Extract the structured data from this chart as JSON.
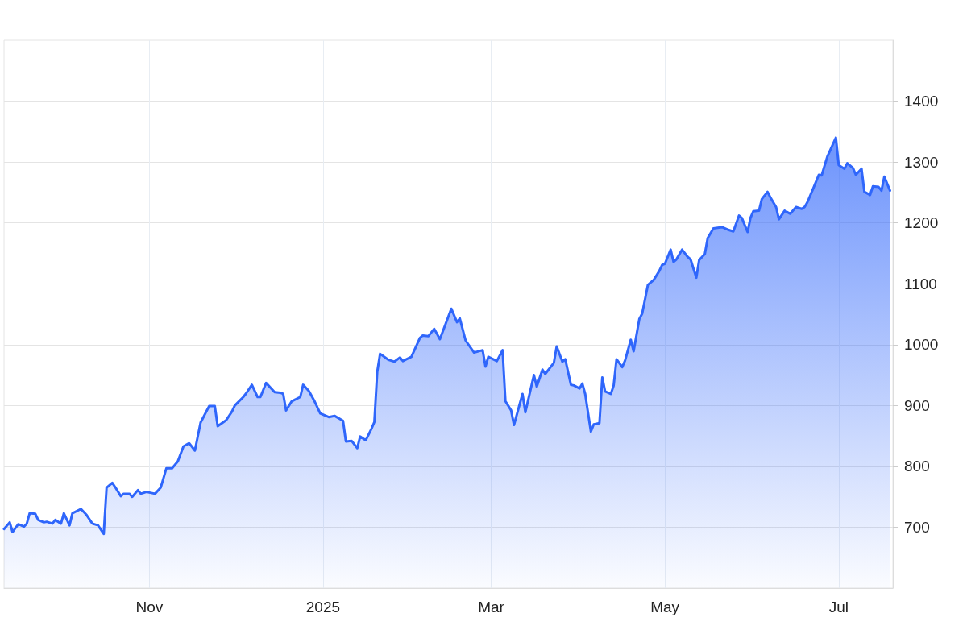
{
  "chart_data": {
    "type": "area",
    "x": [
      "2024-09-11",
      "2024-09-13",
      "2024-09-14",
      "2024-09-16",
      "2024-09-18",
      "2024-09-19",
      "2024-09-20",
      "2024-09-22",
      "2024-09-23",
      "2024-09-25",
      "2024-09-26",
      "2024-09-28",
      "2024-09-29",
      "2024-10-01",
      "2024-10-02",
      "2024-10-04",
      "2024-10-05",
      "2024-10-08",
      "2024-10-10",
      "2024-10-12",
      "2024-10-14",
      "2024-10-16",
      "2024-10-17",
      "2024-10-19",
      "2024-10-20",
      "2024-10-22",
      "2024-10-23",
      "2024-10-25",
      "2024-10-26",
      "2024-10-28",
      "2024-10-29",
      "2024-10-31",
      "2024-11-03",
      "2024-11-05",
      "2024-11-07",
      "2024-11-09",
      "2024-11-11",
      "2024-11-13",
      "2024-11-15",
      "2024-11-17",
      "2024-11-19",
      "2024-11-22",
      "2024-11-24",
      "2024-11-25",
      "2024-11-28",
      "2024-11-30",
      "2024-12-01",
      "2024-12-04",
      "2024-12-05",
      "2024-12-07",
      "2024-12-09",
      "2024-12-10",
      "2024-12-12",
      "2024-12-15",
      "2024-12-17",
      "2024-12-18",
      "2024-12-19",
      "2024-12-21",
      "2024-12-24",
      "2024-12-25",
      "2024-12-27",
      "2024-12-29",
      "2024-12-31",
      "2025-01-03",
      "2025-01-05",
      "2025-01-08",
      "2025-01-09",
      "2025-01-11",
      "2025-01-13",
      "2025-01-14",
      "2025-01-16",
      "2025-01-18",
      "2025-01-19",
      "2025-01-20",
      "2025-01-21",
      "2025-01-24",
      "2025-01-26",
      "2025-01-28",
      "2025-01-29",
      "2025-02-01",
      "2025-02-04",
      "2025-02-05",
      "2025-02-07",
      "2025-02-09",
      "2025-02-11",
      "2025-02-15",
      "2025-02-17",
      "2025-02-18",
      "2025-02-20",
      "2025-02-23",
      "2025-02-26",
      "2025-02-27",
      "2025-02-28",
      "2025-03-03",
      "2025-03-05",
      "2025-03-06",
      "2025-03-08",
      "2025-03-09",
      "2025-03-12",
      "2025-03-13",
      "2025-03-16",
      "2025-03-17",
      "2025-03-19",
      "2025-03-20",
      "2025-03-23",
      "2025-03-24",
      "2025-03-26",
      "2025-03-27",
      "2025-03-29",
      "2025-03-30",
      "2025-04-01",
      "2025-04-02",
      "2025-04-03",
      "2025-04-05",
      "2025-04-06",
      "2025-04-08",
      "2025-04-09",
      "2025-04-10",
      "2025-04-12",
      "2025-04-13",
      "2025-04-14",
      "2025-04-16",
      "2025-04-17",
      "2025-04-19",
      "2025-04-20",
      "2025-04-22",
      "2025-04-23",
      "2025-04-25",
      "2025-04-27",
      "2025-04-29",
      "2025-04-30",
      "2025-05-01",
      "2025-05-03",
      "2025-05-04",
      "2025-05-05",
      "2025-05-07",
      "2025-05-09",
      "2025-05-10",
      "2025-05-12",
      "2025-05-13",
      "2025-05-15",
      "2025-05-16",
      "2025-05-18",
      "2025-05-21",
      "2025-05-23",
      "2025-05-25",
      "2025-05-27",
      "2025-05-28",
      "2025-05-30",
      "2025-05-31",
      "2025-06-01",
      "2025-06-03",
      "2025-06-04",
      "2025-06-06",
      "2025-06-07",
      "2025-06-09",
      "2025-06-10",
      "2025-06-12",
      "2025-06-14",
      "2025-06-16",
      "2025-06-18",
      "2025-06-19",
      "2025-06-20",
      "2025-06-22",
      "2025-06-24",
      "2025-06-25",
      "2025-06-27",
      "2025-06-30",
      "2025-07-01",
      "2025-07-03",
      "2025-07-04",
      "2025-07-06",
      "2025-07-07",
      "2025-07-09",
      "2025-07-10",
      "2025-07-12",
      "2025-07-13",
      "2025-07-15",
      "2025-07-16",
      "2025-07-17",
      "2025-07-19"
    ],
    "series": [
      {
        "color": "#2f66fb",
        "values": [
          697,
          708,
          692,
          705,
          701,
          706,
          723,
          722,
          712,
          708,
          709,
          706,
          712,
          706,
          723,
          703,
          723,
          730,
          720,
          706,
          703,
          689,
          765,
          773,
          766,
          751,
          755,
          755,
          750,
          761,
          755,
          758,
          755,
          765,
          797,
          797,
          808,
          833,
          838,
          826,
          872,
          899,
          899,
          866,
          876,
          890,
          900,
          914,
          920,
          934,
          914,
          914,
          937,
          922,
          921,
          919,
          892,
          907,
          914,
          934,
          924,
          907,
          887,
          881,
          883,
          875,
          841,
          842,
          830,
          849,
          843,
          862,
          873,
          955,
          985,
          975,
          972,
          979,
          973,
          980,
          1011,
          1015,
          1014,
          1026,
          1009,
          1059,
          1037,
          1043,
          1007,
          987,
          991,
          964,
          980,
          973,
          991,
          907,
          892,
          868,
          919,
          889,
          950,
          931,
          959,
          952,
          970,
          997,
          972,
          976,
          934,
          933,
          928,
          936,
          919,
          857,
          869,
          871,
          946,
          923,
          919,
          933,
          976,
          963,
          974,
          1008,
          989,
          1042,
          1051,
          1098,
          1106,
          1121,
          1131,
          1133,
          1156,
          1136,
          1140,
          1156,
          1144,
          1140,
          1110,
          1139,
          1149,
          1175,
          1191,
          1193,
          1189,
          1186,
          1212,
          1208,
          1185,
          1208,
          1219,
          1220,
          1239,
          1251,
          1242,
          1226,
          1206,
          1220,
          1215,
          1226,
          1223,
          1226,
          1234,
          1256,
          1279,
          1278,
          1309,
          1340,
          1295,
          1289,
          1298,
          1290,
          1279,
          1289,
          1251,
          1246,
          1260,
          1259,
          1253,
          1276,
          1253
        ]
      }
    ],
    "xlim": [
      "2024-09-11",
      "2025-07-20"
    ],
    "xticks": [
      {
        "value": "2024-11-01",
        "label": "Nov"
      },
      {
        "value": "2025-01-01",
        "label": "2025"
      },
      {
        "value": "2025-03-01",
        "label": "Mar"
      },
      {
        "value": "2025-05-01",
        "label": "May"
      },
      {
        "value": "2025-07-01",
        "label": "Jul"
      }
    ],
    "ylim": [
      600,
      1500
    ],
    "yticks": [
      700,
      800,
      900,
      1000,
      1100,
      1200,
      1300,
      1400
    ],
    "grid": true,
    "marker": "none",
    "line_style": "solid"
  }
}
